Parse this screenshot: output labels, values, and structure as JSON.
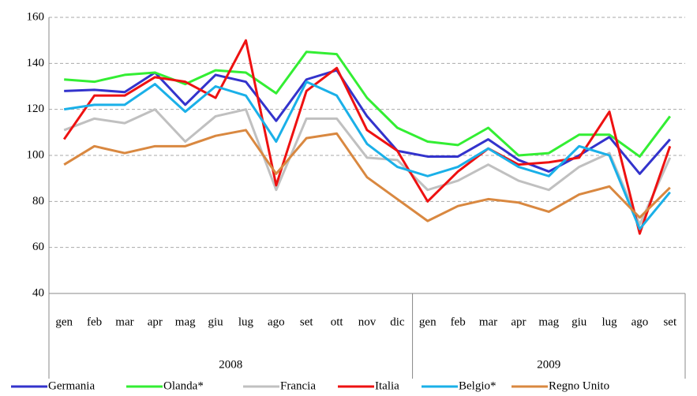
{
  "chart_data": {
    "type": "line",
    "category_groups": [
      {
        "label": "2008",
        "categories": [
          "gen",
          "feb",
          "mar",
          "apr",
          "mag",
          "giu",
          "lug",
          "ago",
          "set",
          "ott",
          "nov",
          "dic"
        ]
      },
      {
        "label": "2009",
        "categories": [
          "gen",
          "feb",
          "mar",
          "apr",
          "mag",
          "giu",
          "lug",
          "ago",
          "set"
        ]
      }
    ],
    "series": [
      {
        "name": "Germania",
        "color": "#3333cc",
        "values": [
          128,
          128.5,
          127.5,
          136,
          122,
          135,
          132,
          115,
          133,
          137,
          117,
          102,
          99.5,
          99.5,
          107,
          98,
          93,
          100,
          108,
          92,
          107
        ]
      },
      {
        "name": "Olanda*",
        "color": "#33ee33",
        "values": [
          133,
          132,
          135,
          136,
          131,
          137,
          136,
          127,
          145,
          144,
          125,
          112,
          106,
          104.5,
          112,
          100,
          101,
          109,
          109,
          99.5,
          117
        ]
      },
      {
        "name": "Francia",
        "color": "#c0c0c0",
        "values": [
          111,
          116,
          114,
          120,
          106,
          117,
          120,
          85,
          116,
          116,
          99,
          98,
          85,
          89,
          96,
          89,
          85,
          95,
          101,
          70,
          99
        ]
      },
      {
        "name": "Italia",
        "color": "#ee1111",
        "values": [
          107,
          126,
          126,
          134,
          132,
          125,
          150,
          87,
          128,
          138,
          111,
          102,
          80,
          93,
          103,
          96,
          97,
          99,
          119,
          66,
          104
        ]
      },
      {
        "name": "Belgio*",
        "color": "#1ab0e8",
        "values": [
          120,
          122,
          122,
          131,
          119,
          130,
          126,
          106,
          132,
          126,
          105,
          95,
          91,
          95,
          103,
          95,
          91,
          104,
          100,
          68,
          84
        ]
      },
      {
        "name": "Regno Unito",
        "color": "#d98840",
        "values": [
          96,
          104,
          101,
          104,
          104,
          108.5,
          111,
          92,
          107.5,
          109.5,
          90.5,
          81,
          71.5,
          78,
          81,
          79.5,
          75.5,
          83,
          86.5,
          73,
          86
        ]
      }
    ],
    "ylim": [
      40,
      160
    ],
    "yticks": [
      40,
      60,
      80,
      100,
      120,
      140,
      160
    ],
    "grid": true,
    "legend": "bottom"
  }
}
